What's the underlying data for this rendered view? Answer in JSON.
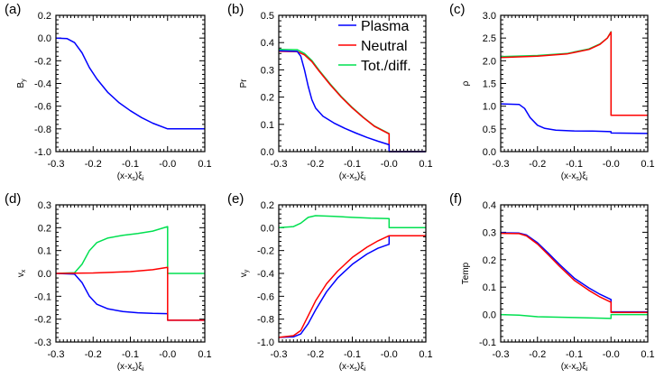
{
  "colors": {
    "Plasma": "#0000ff",
    "Neutral": "#ff0000",
    "Tot./diff.": "#00e050"
  },
  "legend": {
    "panel": 1,
    "placement": "top-right",
    "entries": [
      "Plasma",
      "Neutral",
      "Tot./diff."
    ]
  },
  "chart_data": [
    {
      "type": "line",
      "panel_label": "(a)",
      "xlabel_parts": [
        "(x-x",
        "s",
        ")ξ",
        "i"
      ],
      "ylabel_parts": [
        "B",
        "y"
      ],
      "xlim": [
        -0.3,
        0.1
      ],
      "ylim": [
        -1.0,
        0.2
      ],
      "xticks": [
        "-0.3",
        "-0.2",
        "-0.1",
        "-0.0",
        "0.1"
      ],
      "yticks": [
        "-1.0",
        "-0.8",
        "-0.6",
        "-0.4",
        "-0.2",
        "0.0",
        "0.2"
      ],
      "series": [
        {
          "key": "Plasma",
          "points": [
            [
              -0.3,
              0
            ],
            [
              -0.27,
              -0.005
            ],
            [
              -0.25,
              -0.04
            ],
            [
              -0.23,
              -0.13
            ],
            [
              -0.21,
              -0.26
            ],
            [
              -0.19,
              -0.36
            ],
            [
              -0.16,
              -0.48
            ],
            [
              -0.13,
              -0.57
            ],
            [
              -0.1,
              -0.64
            ],
            [
              -0.07,
              -0.7
            ],
            [
              -0.04,
              -0.75
            ],
            [
              0,
              -0.8
            ],
            [
              0.1,
              -0.8
            ]
          ]
        }
      ]
    },
    {
      "type": "line",
      "panel_label": "(b)",
      "xlabel_parts": [
        "(x-x",
        "s",
        ")ξ",
        "i"
      ],
      "ylabel_parts": [
        "Pr",
        ""
      ],
      "xlim": [
        -0.3,
        0.1
      ],
      "ylim": [
        0.0,
        0.5
      ],
      "xticks": [
        "-0.3",
        "-0.2",
        "-0.1",
        "-0.0",
        "0.1"
      ],
      "yticks": [
        "0.0",
        "0.1",
        "0.2",
        "0.3",
        "0.4",
        "0.5"
      ],
      "series": [
        {
          "key": "Tot./diff.",
          "points": [
            [
              -0.3,
              0.375
            ],
            [
              -0.25,
              0.374
            ],
            [
              -0.23,
              0.36
            ],
            [
              -0.21,
              0.334
            ],
            [
              -0.19,
              0.298
            ],
            [
              -0.16,
              0.248
            ],
            [
              -0.13,
              0.202
            ],
            [
              -0.1,
              0.162
            ],
            [
              -0.07,
              0.126
            ],
            [
              -0.04,
              0.094
            ],
            [
              0,
              0.066
            ],
            [
              0,
              0
            ],
            [
              0.1,
              0
            ]
          ]
        },
        {
          "key": "Neutral",
          "points": [
            [
              -0.3,
              0.368
            ],
            [
              -0.25,
              0.367
            ],
            [
              -0.23,
              0.355
            ],
            [
              -0.21,
              0.33
            ],
            [
              -0.19,
              0.295
            ],
            [
              -0.16,
              0.245
            ],
            [
              -0.13,
              0.2
            ],
            [
              -0.1,
              0.16
            ],
            [
              -0.07,
              0.125
            ],
            [
              -0.04,
              0.093
            ],
            [
              0,
              0.065
            ],
            [
              0,
              0
            ],
            [
              0.1,
              0
            ]
          ]
        },
        {
          "key": "Plasma",
          "points": [
            [
              -0.3,
              0.37
            ],
            [
              -0.25,
              0.368
            ],
            [
              -0.24,
              0.35
            ],
            [
              -0.23,
              0.3
            ],
            [
              -0.22,
              0.24
            ],
            [
              -0.21,
              0.19
            ],
            [
              -0.2,
              0.16
            ],
            [
              -0.18,
              0.13
            ],
            [
              -0.15,
              0.105
            ],
            [
              -0.12,
              0.085
            ],
            [
              -0.09,
              0.068
            ],
            [
              -0.06,
              0.052
            ],
            [
              -0.03,
              0.038
            ],
            [
              0,
              0.025
            ],
            [
              0,
              0
            ],
            [
              0.1,
              0
            ]
          ]
        }
      ]
    },
    {
      "type": "line",
      "panel_label": "(c)",
      "xlabel_parts": [
        "(x-x",
        "s",
        ")ξ",
        "i"
      ],
      "ylabel_parts": [
        "ρ",
        ""
      ],
      "xlim": [
        -0.3,
        0.1
      ],
      "ylim": [
        0.0,
        3.0
      ],
      "xticks": [
        "-0.3",
        "-0.2",
        "-0.1",
        "-0.0",
        "0.1"
      ],
      "yticks": [
        "0.0",
        "0.5",
        "1.0",
        "1.5",
        "2.0",
        "2.5",
        "3.0"
      ],
      "series": [
        {
          "key": "Tot./diff.",
          "points": [
            [
              -0.3,
              2.09
            ],
            [
              -0.2,
              2.115
            ],
            [
              -0.12,
              2.16
            ],
            [
              -0.06,
              2.26
            ],
            [
              -0.03,
              2.37
            ],
            [
              -0.01,
              2.5
            ],
            [
              0,
              2.64
            ],
            [
              0,
              0.8
            ],
            [
              0.1,
              0.8
            ]
          ]
        },
        {
          "key": "Neutral",
          "points": [
            [
              -0.3,
              2.07
            ],
            [
              -0.2,
              2.1
            ],
            [
              -0.12,
              2.15
            ],
            [
              -0.06,
              2.25
            ],
            [
              -0.03,
              2.36
            ],
            [
              -0.01,
              2.5
            ],
            [
              0,
              2.63
            ],
            [
              0,
              0.8
            ],
            [
              0.1,
              0.8
            ]
          ]
        },
        {
          "key": "Plasma",
          "points": [
            [
              -0.3,
              1.05
            ],
            [
              -0.25,
              1.04
            ],
            [
              -0.235,
              0.95
            ],
            [
              -0.22,
              0.75
            ],
            [
              -0.2,
              0.58
            ],
            [
              -0.18,
              0.51
            ],
            [
              -0.15,
              0.47
            ],
            [
              -0.1,
              0.455
            ],
            [
              -0.05,
              0.45
            ],
            [
              0,
              0.44
            ],
            [
              0,
              0.41
            ],
            [
              0.1,
              0.4
            ]
          ]
        }
      ]
    },
    {
      "type": "line",
      "panel_label": "(d)",
      "xlabel_parts": [
        "(x-x",
        "s",
        ")ξ",
        "i"
      ],
      "ylabel_parts": [
        "v",
        "x"
      ],
      "xlim": [
        -0.3,
        0.1
      ],
      "ylim": [
        -0.3,
        0.3
      ],
      "xticks": [
        "-0.3",
        "-0.2",
        "-0.1",
        "-0.0",
        "0.1"
      ],
      "yticks": [
        "-0.3",
        "-0.2",
        "-0.1",
        "0.0",
        "0.1",
        "0.2",
        "0.3"
      ],
      "series": [
        {
          "key": "Tot./diff.",
          "points": [
            [
              -0.3,
              0
            ],
            [
              -0.25,
              0.003
            ],
            [
              -0.23,
              0.04
            ],
            [
              -0.21,
              0.1
            ],
            [
              -0.19,
              0.135
            ],
            [
              -0.16,
              0.155
            ],
            [
              -0.12,
              0.167
            ],
            [
              -0.08,
              0.175
            ],
            [
              -0.04,
              0.185
            ],
            [
              0,
              0.205
            ],
            [
              0,
              0
            ],
            [
              0.1,
              0
            ]
          ]
        },
        {
          "key": "Plasma",
          "points": [
            [
              -0.3,
              0
            ],
            [
              -0.25,
              -0.003
            ],
            [
              -0.23,
              -0.04
            ],
            [
              -0.21,
              -0.1
            ],
            [
              -0.19,
              -0.135
            ],
            [
              -0.16,
              -0.155
            ],
            [
              -0.12,
              -0.167
            ],
            [
              -0.08,
              -0.172
            ],
            [
              -0.04,
              -0.175
            ],
            [
              0,
              -0.176
            ],
            [
              0,
              -0.205
            ],
            [
              0.1,
              -0.205
            ]
          ]
        },
        {
          "key": "Neutral",
          "points": [
            [
              -0.3,
              0
            ],
            [
              -0.2,
              0.002
            ],
            [
              -0.1,
              0.008
            ],
            [
              -0.04,
              0.016
            ],
            [
              0,
              0.027
            ],
            [
              0,
              -0.205
            ],
            [
              0.1,
              -0.205
            ]
          ]
        }
      ]
    },
    {
      "type": "line",
      "panel_label": "(e)",
      "xlabel_parts": [
        "(x-x",
        "s",
        ")ξ",
        "i"
      ],
      "ylabel_parts": [
        "v",
        "y"
      ],
      "xlim": [
        -0.3,
        0.1
      ],
      "ylim": [
        -1.0,
        0.2
      ],
      "xticks": [
        "-0.3",
        "-0.2",
        "-0.1",
        "-0.0",
        "0.1"
      ],
      "yticks": [
        "-1.0",
        "-0.8",
        "-0.6",
        "-0.4",
        "-0.2",
        "0.0",
        "0.2"
      ],
      "series": [
        {
          "key": "Tot./diff.",
          "points": [
            [
              -0.3,
              0
            ],
            [
              -0.26,
              0.01
            ],
            [
              -0.24,
              0.04
            ],
            [
              -0.22,
              0.09
            ],
            [
              -0.2,
              0.105
            ],
            [
              -0.15,
              0.1
            ],
            [
              -0.1,
              0.09
            ],
            [
              -0.05,
              0.083
            ],
            [
              0,
              0.08
            ],
            [
              0,
              0
            ],
            [
              0.1,
              0
            ]
          ]
        },
        {
          "key": "Plasma",
          "points": [
            [
              -0.3,
              -0.96
            ],
            [
              -0.26,
              -0.955
            ],
            [
              -0.24,
              -0.93
            ],
            [
              -0.22,
              -0.84
            ],
            [
              -0.2,
              -0.72
            ],
            [
              -0.17,
              -0.56
            ],
            [
              -0.14,
              -0.44
            ],
            [
              -0.1,
              -0.32
            ],
            [
              -0.06,
              -0.23
            ],
            [
              -0.03,
              -0.18
            ],
            [
              0,
              -0.145
            ],
            [
              0,
              -0.07
            ],
            [
              0.1,
              -0.07
            ]
          ]
        },
        {
          "key": "Neutral",
          "points": [
            [
              -0.3,
              -0.96
            ],
            [
              -0.26,
              -0.945
            ],
            [
              -0.24,
              -0.9
            ],
            [
              -0.22,
              -0.77
            ],
            [
              -0.2,
              -0.64
            ],
            [
              -0.17,
              -0.49
            ],
            [
              -0.14,
              -0.38
            ],
            [
              -0.1,
              -0.26
            ],
            [
              -0.06,
              -0.17
            ],
            [
              -0.03,
              -0.115
            ],
            [
              0,
              -0.07
            ],
            [
              0.1,
              -0.07
            ]
          ]
        }
      ]
    },
    {
      "type": "line",
      "panel_label": "(f)",
      "xlabel_parts": [
        "(x-x",
        "s",
        ")ξ",
        "i"
      ],
      "ylabel_parts": [
        "Temp",
        ""
      ],
      "xlim": [
        -0.3,
        0.1
      ],
      "ylim": [
        -0.1,
        0.4
      ],
      "xticks": [
        "-0.3",
        "-0.2",
        "-0.1",
        "-0.0",
        "0.1"
      ],
      "yticks": [
        "-0.1",
        "0.0",
        "0.1",
        "0.2",
        "0.3",
        "0.4"
      ],
      "series": [
        {
          "key": "Tot./diff.",
          "points": [
            [
              -0.3,
              0
            ],
            [
              -0.25,
              -0.002
            ],
            [
              -0.2,
              -0.008
            ],
            [
              -0.1,
              -0.011
            ],
            [
              0,
              -0.014
            ],
            [
              0,
              0
            ],
            [
              0.1,
              0
            ]
          ]
        },
        {
          "key": "Plasma",
          "points": [
            [
              -0.3,
              0.298
            ],
            [
              -0.25,
              0.297
            ],
            [
              -0.23,
              0.29
            ],
            [
              -0.2,
              0.262
            ],
            [
              -0.17,
              0.223
            ],
            [
              -0.14,
              0.183
            ],
            [
              -0.1,
              0.133
            ],
            [
              -0.06,
              0.097
            ],
            [
              -0.03,
              0.074
            ],
            [
              0,
              0.055
            ],
            [
              0,
              0.01
            ],
            [
              0.1,
              0.01
            ]
          ]
        },
        {
          "key": "Neutral",
          "points": [
            [
              -0.3,
              0.296
            ],
            [
              -0.25,
              0.295
            ],
            [
              -0.23,
              0.287
            ],
            [
              -0.2,
              0.257
            ],
            [
              -0.17,
              0.217
            ],
            [
              -0.14,
              0.176
            ],
            [
              -0.1,
              0.125
            ],
            [
              -0.06,
              0.088
            ],
            [
              -0.03,
              0.064
            ],
            [
              0,
              0.045
            ],
            [
              0,
              0.008
            ],
            [
              0.1,
              0.008
            ]
          ]
        }
      ]
    }
  ]
}
